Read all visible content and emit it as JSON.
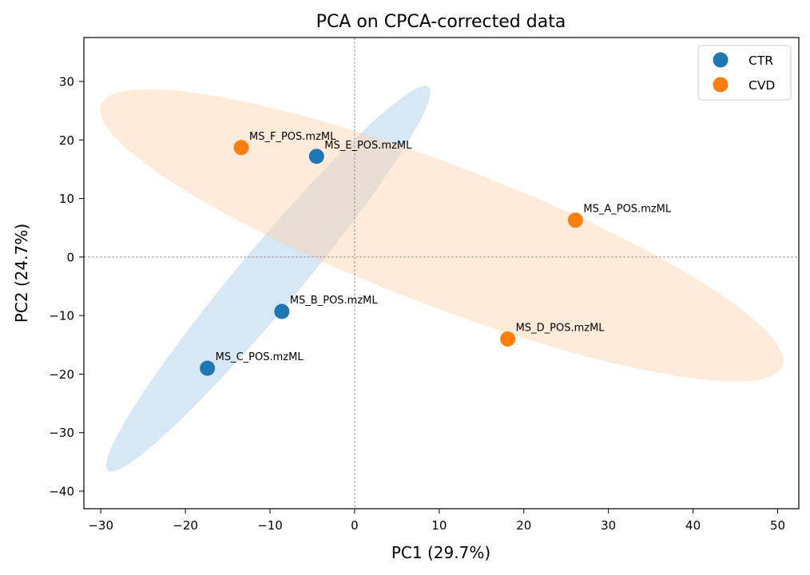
{
  "chart_data": {
    "type": "scatter",
    "title": "PCA on CPCA-corrected data",
    "xlabel": "PC1 (29.7%)",
    "ylabel": "PC2 (24.7%)",
    "xlim": [
      -32,
      52.5
    ],
    "ylim": [
      -43,
      37.5
    ],
    "xticks": [
      -30,
      -20,
      -10,
      0,
      10,
      20,
      30,
      40,
      50
    ],
    "yticks": [
      -40,
      -30,
      -20,
      -10,
      0,
      10,
      20,
      30
    ],
    "reference_lines": {
      "x": 0,
      "y": 0
    },
    "legend_position": "top-right",
    "series": [
      {
        "name": "CTR",
        "color": "#1f77b4",
        "points": [
          {
            "label": "MS_E_POS.mzML",
            "x": -4.5,
            "y": 17.2
          },
          {
            "label": "MS_B_POS.mzML",
            "x": -8.6,
            "y": -9.3
          },
          {
            "label": "MS_C_POS.mzML",
            "x": -17.4,
            "y": -19.0
          }
        ],
        "ellipse": {
          "center": [
            -10.2,
            -3.7
          ],
          "rx": 37.3,
          "ry": 7.7,
          "angle_deg": 61.3,
          "fill": "#a9c9e6",
          "stroke": "#a9c9e6"
        }
      },
      {
        "name": "CVD",
        "color": "#ff7f0e",
        "points": [
          {
            "label": "MS_F_POS.mzML",
            "x": -13.4,
            "y": 18.7
          },
          {
            "label": "MS_A_POS.mzML",
            "x": 26.1,
            "y": 6.3
          },
          {
            "label": "MS_D_POS.mzML",
            "x": 18.1,
            "y": -14.0
          }
        ],
        "ellipse": {
          "center": [
            10.3,
            3.7
          ],
          "rx": 43.7,
          "ry": 18.4,
          "angle_deg": -25.1,
          "fill": "#ffd3ae",
          "stroke": "#ffcc9e"
        }
      }
    ]
  }
}
